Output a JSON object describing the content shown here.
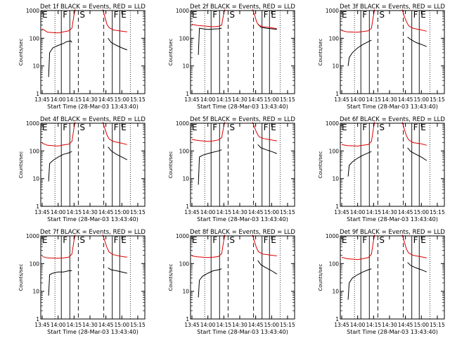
{
  "figure": {
    "background": "#ffffff"
  },
  "chart_data": [
    {
      "type": "line",
      "title": "Det 1f BLACK = Events, RED = LLD",
      "xlabel": "Start Time (28-Mar-03 13:43:40)",
      "ylabel": "Counts/sec",
      "yscale": "log",
      "ylim": [
        1,
        1000
      ],
      "xlim": [
        "13:43:40",
        "15:21:40"
      ],
      "x_ticks": [
        "13:45",
        "14:00",
        "14:15",
        "14:30",
        "14:45",
        "15:00",
        "15:15"
      ],
      "y_ticks": [
        "1",
        "10",
        "100",
        "1000"
      ],
      "interval_labels": [
        "E",
        "F",
        "S",
        "F",
        "E"
      ],
      "grid": false,
      "series": [
        {
          "color": "#000000",
          "x": [
            "13:51",
            "13:52",
            "13:55",
            "14:00",
            "14:05",
            "14:08",
            "14:12",
            "14:13"
          ],
          "values": [
            4,
            30,
            45,
            55,
            65,
            75,
            80,
            70
          ]
        },
        {
          "color": "#000000",
          "x": [
            "14:47",
            "14:50",
            "14:55",
            "15:00",
            "15:05"
          ],
          "values": [
            100,
            70,
            55,
            45,
            38
          ]
        },
        {
          "color": "#dd0000",
          "x": [
            "13:45",
            "13:50",
            "14:00",
            "14:05",
            "14:10",
            "14:13",
            "14:15",
            "14:16"
          ],
          "values": [
            220,
            165,
            155,
            170,
            185,
            230,
            700,
            1100
          ]
        },
        {
          "color": "#dd0000",
          "x": [
            "14:42",
            "14:44",
            "14:46",
            "14:48",
            "14:52",
            "15:00",
            "15:05"
          ],
          "values": [
            1100,
            600,
            320,
            240,
            200,
            180,
            170
          ]
        }
      ]
    },
    {
      "type": "line",
      "title": "Det 2f BLACK = Events, RED = LLD",
      "xlabel": "Start Time (28-Mar-03 13:43:40)",
      "ylabel": "Counts/sec",
      "yscale": "log",
      "ylim": [
        1,
        1000
      ],
      "xlim": [
        "13:43:40",
        "15:21:40"
      ],
      "x_ticks": [
        "13:45",
        "14:00",
        "14:15",
        "14:30",
        "14:45",
        "15:00",
        "15:15"
      ],
      "y_ticks": [
        "1",
        "10",
        "100",
        "1000"
      ],
      "interval_labels": [
        "E",
        "F",
        "S",
        "F",
        "E"
      ],
      "grid": false,
      "series": [
        {
          "color": "#000000",
          "x": [
            "13:51",
            "13:52",
            "13:55",
            "14:00",
            "14:05",
            "14:10",
            "14:13"
          ],
          "values": [
            25,
            230,
            220,
            210,
            215,
            220,
            230
          ]
        },
        {
          "color": "#000000",
          "x": [
            "14:47",
            "14:50",
            "14:55",
            "15:00",
            "15:05"
          ],
          "values": [
            330,
            250,
            230,
            220,
            210
          ]
        },
        {
          "color": "#dd0000",
          "x": [
            "13:45",
            "13:50",
            "14:00",
            "14:05",
            "14:10",
            "14:13",
            "14:15",
            "14:16"
          ],
          "values": [
            320,
            290,
            270,
            260,
            270,
            300,
            800,
            1100
          ]
        },
        {
          "color": "#dd0000",
          "x": [
            "14:42",
            "14:44",
            "14:46",
            "14:48",
            "14:52",
            "15:00",
            "15:05"
          ],
          "values": [
            1100,
            700,
            380,
            290,
            260,
            240,
            220
          ]
        }
      ]
    },
    {
      "type": "line",
      "title": "Det 3f BLACK = Events, RED = LLD",
      "xlabel": "Start Time (28-Mar-03 13:43:40)",
      "ylabel": "Counts/sec",
      "yscale": "log",
      "ylim": [
        1,
        1000
      ],
      "xlim": [
        "13:43:40",
        "15:21:40"
      ],
      "x_ticks": [
        "13:45",
        "14:00",
        "14:15",
        "14:30",
        "14:45",
        "15:00",
        "15:15"
      ],
      "y_ticks": [
        "1",
        "10",
        "100",
        "1000"
      ],
      "interval_labels": [
        "E",
        "F",
        "S",
        "F",
        "E"
      ],
      "grid": false,
      "series": [
        {
          "color": "#000000",
          "x": [
            "13:51",
            "13:52",
            "13:55",
            "14:00",
            "14:05",
            "14:10",
            "14:13"
          ],
          "values": [
            10,
            20,
            30,
            45,
            60,
            75,
            85
          ]
        },
        {
          "color": "#000000",
          "x": [
            "14:47",
            "14:50",
            "14:55",
            "15:00",
            "15:05"
          ],
          "values": [
            110,
            90,
            70,
            60,
            50
          ]
        },
        {
          "color": "#dd0000",
          "x": [
            "13:45",
            "13:50",
            "14:00",
            "14:05",
            "14:10",
            "14:13",
            "14:15",
            "14:16"
          ],
          "values": [
            190,
            170,
            165,
            175,
            185,
            230,
            700,
            1100
          ]
        },
        {
          "color": "#dd0000",
          "x": [
            "14:42",
            "14:44",
            "14:46",
            "14:48",
            "14:52",
            "15:00",
            "15:05"
          ],
          "values": [
            1100,
            600,
            400,
            280,
            230,
            200,
            180
          ]
        }
      ]
    },
    {
      "type": "line",
      "title": "Det 4f BLACK = Events, RED = LLD",
      "xlabel": "Start Time (28-Mar-03 13:43:40)",
      "ylabel": "Counts/sec",
      "yscale": "log",
      "ylim": [
        1,
        1000
      ],
      "xlim": [
        "13:43:40",
        "15:21:40"
      ],
      "x_ticks": [
        "13:45",
        "14:00",
        "14:15",
        "14:30",
        "14:45",
        "15:00",
        "15:15"
      ],
      "y_ticks": [
        "1",
        "10",
        "100",
        "1000"
      ],
      "interval_labels": [
        "E",
        "F",
        "S",
        "F",
        "E"
      ],
      "grid": false,
      "series": [
        {
          "color": "#000000",
          "x": [
            "13:51",
            "13:52",
            "13:55",
            "14:00",
            "14:05",
            "14:10",
            "14:13"
          ],
          "values": [
            8,
            35,
            45,
            60,
            75,
            85,
            95
          ]
        },
        {
          "color": "#000000",
          "x": [
            "14:47",
            "14:50",
            "14:55",
            "15:00",
            "15:05"
          ],
          "values": [
            140,
            100,
            75,
            60,
            48
          ]
        },
        {
          "color": "#dd0000",
          "x": [
            "13:45",
            "13:50",
            "14:00",
            "14:05",
            "14:10",
            "14:13",
            "14:15",
            "14:16"
          ],
          "values": [
            190,
            160,
            150,
            165,
            175,
            220,
            700,
            1100
          ]
        },
        {
          "color": "#dd0000",
          "x": [
            "14:42",
            "14:44",
            "14:46",
            "14:48",
            "14:52",
            "15:00",
            "15:05"
          ],
          "values": [
            1100,
            650,
            380,
            270,
            220,
            190,
            170
          ]
        }
      ]
    },
    {
      "type": "line",
      "title": "Det 5f BLACK = Events, RED = LLD",
      "xlabel": "Start Time (28-Mar-03 13:43:40)",
      "ylabel": "Counts/sec",
      "yscale": "log",
      "ylim": [
        1,
        1000
      ],
      "xlim": [
        "13:43:40",
        "15:21:40"
      ],
      "x_ticks": [
        "13:45",
        "14:00",
        "14:15",
        "14:30",
        "14:45",
        "15:00",
        "15:15"
      ],
      "y_ticks": [
        "1",
        "10",
        "100",
        "1000"
      ],
      "interval_labels": [
        "E",
        "F",
        "S",
        "F",
        "E"
      ],
      "grid": false,
      "series": [
        {
          "color": "#000000",
          "x": [
            "13:51",
            "13:52",
            "13:55",
            "14:00",
            "14:05",
            "14:10",
            "14:13"
          ],
          "values": [
            6,
            60,
            70,
            80,
            90,
            100,
            110
          ]
        },
        {
          "color": "#000000",
          "x": [
            "14:47",
            "14:50",
            "14:55",
            "15:00",
            "15:05"
          ],
          "values": [
            170,
            130,
            110,
            95,
            80
          ]
        },
        {
          "color": "#dd0000",
          "x": [
            "13:45",
            "13:50",
            "14:00",
            "14:05",
            "14:10",
            "14:13",
            "14:15",
            "14:16"
          ],
          "values": [
            260,
            240,
            220,
            230,
            250,
            300,
            800,
            1100
          ]
        },
        {
          "color": "#dd0000",
          "x": [
            "14:42",
            "14:44",
            "14:46",
            "14:48",
            "14:52",
            "15:00",
            "15:05"
          ],
          "values": [
            1100,
            700,
            450,
            330,
            280,
            250,
            230
          ]
        }
      ]
    },
    {
      "type": "line",
      "title": "Det 6f BLACK = Events, RED = LLD",
      "xlabel": "Start Time (28-Mar-03 13:43:40)",
      "ylabel": "Counts/sec",
      "yscale": "log",
      "ylim": [
        1,
        1000
      ],
      "xlim": [
        "13:43:40",
        "15:21:40"
      ],
      "x_ticks": [
        "13:45",
        "14:00",
        "14:15",
        "14:30",
        "14:45",
        "15:00",
        "15:15"
      ],
      "y_ticks": [
        "1",
        "10",
        "100",
        "1000"
      ],
      "interval_labels": [
        "E",
        "F",
        "S",
        "F",
        "E"
      ],
      "grid": false,
      "series": [
        {
          "color": "#000000",
          "x": [
            "13:51",
            "13:52",
            "13:55",
            "14:00",
            "14:05",
            "14:10",
            "14:13"
          ],
          "values": [
            12,
            30,
            40,
            55,
            70,
            85,
            95
          ]
        },
        {
          "color": "#000000",
          "x": [
            "14:47",
            "14:50",
            "14:55",
            "15:00",
            "15:05"
          ],
          "values": [
            130,
            95,
            75,
            60,
            45
          ]
        },
        {
          "color": "#dd0000",
          "x": [
            "13:45",
            "13:50",
            "14:00",
            "14:05",
            "14:10",
            "14:13",
            "14:15",
            "14:16"
          ],
          "values": [
            170,
            155,
            150,
            160,
            170,
            220,
            700,
            1100
          ]
        },
        {
          "color": "#dd0000",
          "x": [
            "14:42",
            "14:44",
            "14:46",
            "14:48",
            "14:52",
            "15:00",
            "15:05"
          ],
          "values": [
            1100,
            600,
            350,
            250,
            200,
            180,
            160
          ]
        }
      ]
    },
    {
      "type": "line",
      "title": "Det 7f BLACK = Events, RED = LLD",
      "xlabel": "Start Time (28-Mar-03 13:43:40)",
      "ylabel": "Counts/sec",
      "yscale": "log",
      "ylim": [
        1,
        1000
      ],
      "xlim": [
        "13:43:40",
        "15:21:40"
      ],
      "x_ticks": [
        "13:45",
        "14:00",
        "14:15",
        "14:30",
        "14:45",
        "15:00",
        "15:15"
      ],
      "y_ticks": [
        "1",
        "10",
        "100",
        "1000"
      ],
      "interval_labels": [
        "E",
        "F",
        "S",
        "F",
        "E"
      ],
      "grid": false,
      "series": [
        {
          "color": "#000000",
          "x": [
            "13:51",
            "13:52",
            "13:55",
            "14:00",
            "14:05",
            "14:10",
            "14:13"
          ],
          "values": [
            7,
            40,
            45,
            50,
            50,
            55,
            55
          ]
        },
        {
          "color": "#000000",
          "x": [
            "14:47",
            "14:50",
            "14:55",
            "15:00",
            "15:05"
          ],
          "values": [
            70,
            60,
            55,
            50,
            45
          ]
        },
        {
          "color": "#dd0000",
          "x": [
            "13:45",
            "13:50",
            "14:00",
            "14:05",
            "14:10",
            "14:13",
            "14:15",
            "14:16"
          ],
          "values": [
            180,
            160,
            155,
            160,
            170,
            220,
            700,
            1100
          ]
        },
        {
          "color": "#dd0000",
          "x": [
            "14:42",
            "14:44",
            "14:46",
            "14:48",
            "14:52",
            "15:00",
            "15:05"
          ],
          "values": [
            1100,
            650,
            380,
            260,
            210,
            180,
            170
          ]
        }
      ]
    },
    {
      "type": "line",
      "title": "Det 8f BLACK = Events, RED = LLD",
      "xlabel": "Start Time (28-Mar-03 13:43:40)",
      "ylabel": "Counts/sec",
      "yscale": "log",
      "ylim": [
        1,
        1000
      ],
      "xlim": [
        "13:43:40",
        "15:21:40"
      ],
      "x_ticks": [
        "13:45",
        "14:00",
        "14:15",
        "14:30",
        "14:45",
        "15:00",
        "15:15"
      ],
      "y_ticks": [
        "1",
        "10",
        "100",
        "1000"
      ],
      "interval_labels": [
        "E",
        "F",
        "S",
        "F",
        "E"
      ],
      "grid": false,
      "series": [
        {
          "color": "#000000",
          "x": [
            "13:51",
            "13:52",
            "13:55",
            "14:00",
            "14:05",
            "14:10",
            "14:13"
          ],
          "values": [
            6,
            25,
            35,
            45,
            55,
            60,
            65
          ]
        },
        {
          "color": "#000000",
          "x": [
            "14:47",
            "14:50",
            "14:55",
            "15:00",
            "15:05"
          ],
          "values": [
            130,
            90,
            70,
            55,
            42
          ]
        },
        {
          "color": "#dd0000",
          "x": [
            "13:45",
            "13:50",
            "14:00",
            "14:05",
            "14:10",
            "14:13",
            "14:15",
            "14:16"
          ],
          "values": [
            190,
            175,
            165,
            170,
            180,
            230,
            700,
            1100
          ]
        },
        {
          "color": "#dd0000",
          "x": [
            "14:42",
            "14:44",
            "14:46",
            "14:48",
            "14:52",
            "15:00",
            "15:05"
          ],
          "values": [
            1100,
            600,
            350,
            260,
            220,
            200,
            190
          ]
        }
      ]
    },
    {
      "type": "line",
      "title": "Det 9f BLACK = Events, RED = LLD",
      "xlabel": "Start Time (28-Mar-03 13:43:40)",
      "ylabel": "Counts/sec",
      "yscale": "log",
      "ylim": [
        1,
        1000
      ],
      "xlim": [
        "13:43:40",
        "15:21:40"
      ],
      "x_ticks": [
        "13:45",
        "14:00",
        "14:15",
        "14:30",
        "14:45",
        "15:00",
        "15:15"
      ],
      "y_ticks": [
        "1",
        "10",
        "100",
        "1000"
      ],
      "interval_labels": [
        "E",
        "F",
        "S",
        "F",
        "E"
      ],
      "grid": false,
      "series": [
        {
          "color": "#000000",
          "x": [
            "13:51",
            "13:52",
            "13:55",
            "14:00",
            "14:05",
            "14:10",
            "14:13"
          ],
          "values": [
            5,
            20,
            30,
            40,
            50,
            60,
            65
          ]
        },
        {
          "color": "#000000",
          "x": [
            "14:47",
            "14:50",
            "14:55",
            "15:00",
            "15:05"
          ],
          "values": [
            110,
            85,
            70,
            60,
            50
          ]
        },
        {
          "color": "#dd0000",
          "x": [
            "13:45",
            "13:50",
            "14:00",
            "14:05",
            "14:10",
            "14:13",
            "14:15",
            "14:16"
          ],
          "values": [
            170,
            150,
            140,
            150,
            165,
            220,
            700,
            1100
          ]
        },
        {
          "color": "#dd0000",
          "x": [
            "14:42",
            "14:44",
            "14:46",
            "14:48",
            "14:52",
            "15:00",
            "15:05"
          ],
          "values": [
            1100,
            600,
            330,
            240,
            200,
            175,
            160
          ]
        }
      ]
    }
  ],
  "interval_markers": {
    "dotted": [
      "13:57",
      "15:08"
    ],
    "solid": [
      "14:03",
      "14:11",
      "14:51",
      "14:58"
    ],
    "dashed": [
      "14:19",
      "14:43"
    ]
  }
}
